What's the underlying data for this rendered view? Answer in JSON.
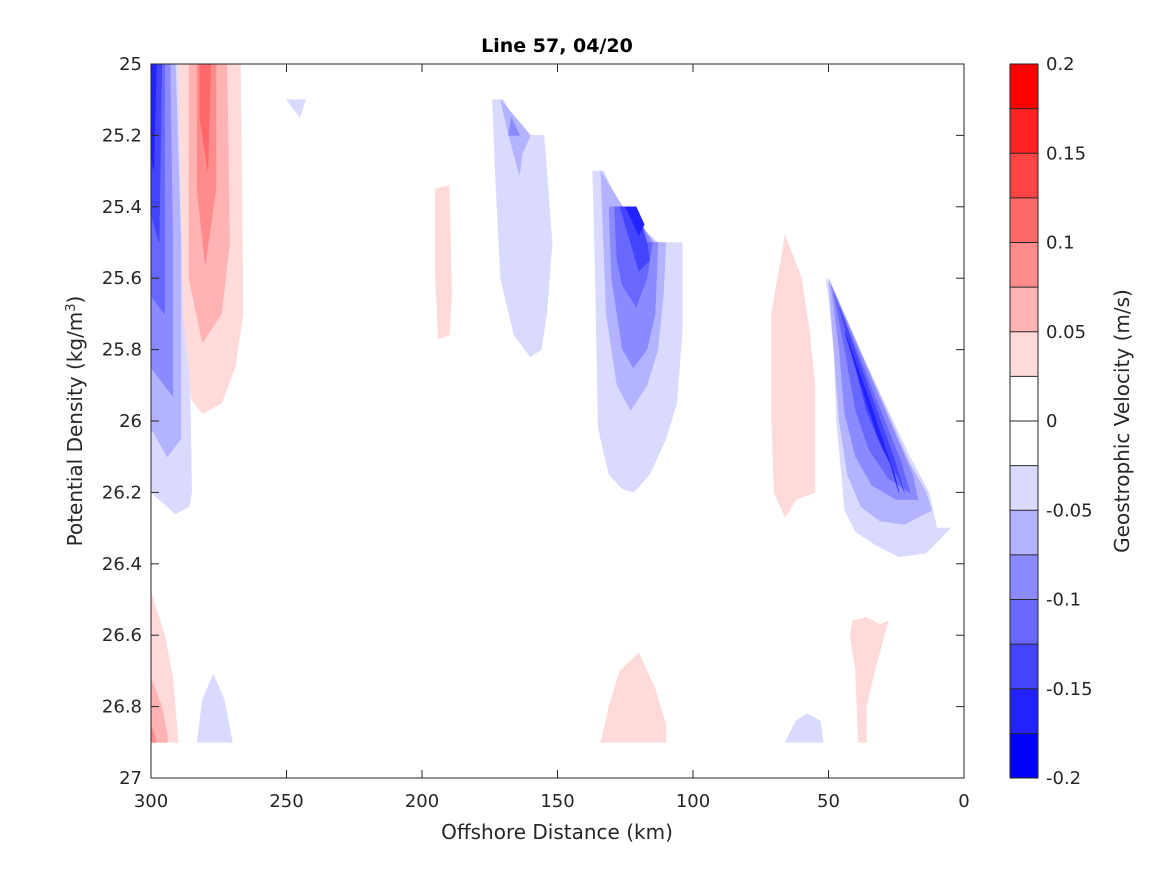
{
  "chart_data": {
    "type": "contour",
    "title": "Line 57, 04/20",
    "xlabel": "Offshore Distance (km)",
    "ylabel_main": "Potential Density (kg/m",
    "ylabel_sup": "3",
    "ylabel_close": ")",
    "colorbar_label": "Geostrophic Velocity (m/s)",
    "xlim": [
      300,
      0
    ],
    "ylim": [
      25,
      27
    ],
    "x_reversed": true,
    "y_reversed": true,
    "xticks": [
      "300",
      "250",
      "200",
      "150",
      "100",
      "50",
      "0"
    ],
    "yticks": [
      "25",
      "25.2",
      "25.4",
      "25.6",
      "25.8",
      "26",
      "26.2",
      "26.4",
      "26.6",
      "26.8",
      "27"
    ],
    "colorbar": {
      "range": [
        -0.2,
        0.2
      ],
      "levels": 16,
      "tick_labels": [
        "0.2",
        "0.15",
        "0.1",
        "0.05",
        "0",
        "-0.05",
        "-0.1",
        "-0.15",
        "-0.2"
      ],
      "colors_top_to_bottom": [
        "#ff0000",
        "#ff2222",
        "#ff4444",
        "#ff6868",
        "#ff8b8b",
        "#ffb3b3",
        "#ffdada",
        "#ffffff",
        "#ffffff",
        "#dadaff",
        "#b3b3ff",
        "#8b8bff",
        "#6868ff",
        "#4444ff",
        "#2222ff",
        "#0000ff"
      ]
    },
    "regions": [
      {
        "sign": "neg",
        "level": 1,
        "points": [
          [
            300,
            25
          ],
          [
            289,
            25
          ],
          [
            286,
            25.7
          ],
          [
            285,
            26.2
          ],
          [
            286,
            26.24
          ],
          [
            291,
            26.26
          ],
          [
            300,
            26.2
          ]
        ]
      },
      {
        "sign": "neg",
        "level": 2,
        "points": [
          [
            300,
            25
          ],
          [
            291,
            25
          ],
          [
            289,
            25.5
          ],
          [
            289,
            26.05
          ],
          [
            294,
            26.1
          ],
          [
            300,
            26.02
          ]
        ]
      },
      {
        "sign": "neg",
        "level": 3,
        "points": [
          [
            300,
            25
          ],
          [
            293,
            25
          ],
          [
            292,
            25.5
          ],
          [
            292,
            25.93
          ],
          [
            300,
            25.85
          ]
        ]
      },
      {
        "sign": "neg",
        "level": 4,
        "points": [
          [
            300,
            25
          ],
          [
            295,
            25
          ],
          [
            295,
            25.7
          ],
          [
            300,
            25.65
          ]
        ]
      },
      {
        "sign": "neg",
        "level": 5,
        "points": [
          [
            300,
            25
          ],
          [
            296,
            25
          ],
          [
            297,
            25.5
          ],
          [
            300,
            25.42
          ]
        ]
      },
      {
        "sign": "neg",
        "level": 6,
        "points": [
          [
            300,
            25
          ],
          [
            298,
            25
          ],
          [
            299,
            25.3
          ],
          [
            300,
            25.25
          ]
        ]
      },
      {
        "sign": "pos",
        "level": 1,
        "points": [
          [
            290,
            25
          ],
          [
            267,
            25
          ],
          [
            266,
            25.7
          ],
          [
            269,
            25.85
          ],
          [
            274,
            25.95
          ],
          [
            281,
            25.98
          ],
          [
            285,
            25.94
          ],
          [
            288,
            25.7
          ]
        ]
      },
      {
        "sign": "pos",
        "level": 2,
        "points": [
          [
            286,
            25
          ],
          [
            272,
            25
          ],
          [
            271,
            25.5
          ],
          [
            274,
            25.7
          ],
          [
            281,
            25.78
          ],
          [
            286,
            25.6
          ]
        ]
      },
      {
        "sign": "pos",
        "level": 3,
        "points": [
          [
            283,
            25
          ],
          [
            276,
            25
          ],
          [
            276,
            25.35
          ],
          [
            280,
            25.56
          ],
          [
            283,
            25.35
          ]
        ]
      },
      {
        "sign": "pos",
        "level": 4,
        "points": [
          [
            282,
            25
          ],
          [
            278,
            25
          ],
          [
            279,
            25.3
          ],
          [
            282,
            25.15
          ]
        ]
      },
      {
        "sign": "neg",
        "level": 1,
        "points": [
          [
            250,
            25.1
          ],
          [
            243,
            25.1
          ],
          [
            245,
            25.15
          ],
          [
            247,
            25.13
          ]
        ]
      },
      {
        "sign": "pos",
        "level": 1,
        "points": [
          [
            195,
            25.35
          ],
          [
            190,
            25.34
          ],
          [
            189,
            25.65
          ],
          [
            190,
            25.76
          ],
          [
            194,
            25.77
          ],
          [
            195,
            25.6
          ]
        ]
      },
      {
        "sign": "neg",
        "level": 1,
        "points": [
          [
            174,
            25.1
          ],
          [
            170,
            25.1
          ],
          [
            163,
            25.2
          ],
          [
            155,
            25.2
          ],
          [
            152,
            25.5
          ],
          [
            154,
            25.7
          ],
          [
            156,
            25.8
          ],
          [
            160,
            25.82
          ],
          [
            166,
            25.76
          ],
          [
            171,
            25.6
          ],
          [
            173,
            25.3
          ]
        ]
      },
      {
        "sign": "neg",
        "level": 2,
        "points": [
          [
            171,
            25.1
          ],
          [
            160,
            25.2
          ],
          [
            163,
            25.25
          ],
          [
            164,
            25.31
          ],
          [
            168,
            25.2
          ]
        ]
      },
      {
        "sign": "neg",
        "level": 3,
        "points": [
          [
            167,
            25.15
          ],
          [
            164,
            25.2
          ],
          [
            168,
            25.2
          ]
        ]
      },
      {
        "sign": "neg",
        "level": 1,
        "points": [
          [
            137,
            25.3
          ],
          [
            133,
            25.3
          ],
          [
            127,
            25.4
          ],
          [
            113,
            25.5
          ],
          [
            104,
            25.5
          ],
          [
            104,
            25.75
          ],
          [
            106,
            25.95
          ],
          [
            110,
            26.05
          ],
          [
            116,
            26.15
          ],
          [
            122,
            26.2
          ],
          [
            126,
            26.19
          ],
          [
            131,
            26.15
          ],
          [
            135,
            26.02
          ],
          [
            136,
            25.6
          ]
        ]
      },
      {
        "sign": "neg",
        "level": 2,
        "points": [
          [
            134,
            25.3
          ],
          [
            126,
            25.4
          ],
          [
            114,
            25.5
          ],
          [
            110,
            25.5
          ],
          [
            111,
            25.65
          ],
          [
            113,
            25.8
          ],
          [
            117,
            25.9
          ],
          [
            123,
            25.97
          ],
          [
            128,
            25.9
          ],
          [
            132,
            25.7
          ]
        ]
      },
      {
        "sign": "neg",
        "level": 3,
        "points": [
          [
            131,
            25.4
          ],
          [
            123,
            25.4
          ],
          [
            115,
            25.5
          ],
          [
            113,
            25.5
          ],
          [
            114,
            25.7
          ],
          [
            117,
            25.8
          ],
          [
            122,
            25.85
          ],
          [
            126,
            25.8
          ],
          [
            130,
            25.6
          ]
        ]
      },
      {
        "sign": "neg",
        "level": 4,
        "points": [
          [
            129,
            25.4
          ],
          [
            121,
            25.4
          ],
          [
            117,
            25.5
          ],
          [
            115,
            25.5
          ],
          [
            117,
            25.6
          ],
          [
            121,
            25.68
          ],
          [
            126,
            25.62
          ],
          [
            128,
            25.55
          ]
        ]
      },
      {
        "sign": "neg",
        "level": 5,
        "points": [
          [
            127,
            25.4
          ],
          [
            121,
            25.4
          ],
          [
            117,
            25.5
          ],
          [
            116,
            25.55
          ],
          [
            120,
            25.58
          ],
          [
            123,
            25.5
          ]
        ]
      },
      {
        "sign": "neg",
        "level": 6,
        "points": [
          [
            125,
            25.4
          ],
          [
            121,
            25.4
          ],
          [
            118,
            25.45
          ],
          [
            120,
            25.48
          ]
        ]
      },
      {
        "sign": "pos",
        "level": 1,
        "points": [
          [
            66,
            25.48
          ],
          [
            71,
            25.7
          ],
          [
            71,
            25.8
          ],
          [
            71,
            26.0
          ],
          [
            70,
            26.2
          ],
          [
            66,
            26.27
          ],
          [
            62,
            26.22
          ],
          [
            55,
            26.2
          ],
          [
            55,
            25.9
          ],
          [
            57,
            25.75
          ],
          [
            60,
            25.6
          ]
        ]
      },
      {
        "sign": "neg",
        "level": 1,
        "points": [
          [
            51,
            25.6
          ],
          [
            50,
            25.65
          ],
          [
            48,
            25.8
          ],
          [
            47,
            26.0
          ],
          [
            44,
            26.25
          ],
          [
            40,
            26.31
          ],
          [
            32,
            26.35
          ],
          [
            24,
            26.38
          ],
          [
            14,
            26.37
          ],
          [
            5,
            26.3
          ],
          [
            10,
            26.3
          ],
          [
            13,
            26.2
          ],
          [
            20,
            26.1
          ]
        ]
      },
      {
        "sign": "neg",
        "level": 2,
        "points": [
          [
            50,
            25.6
          ],
          [
            48,
            25.8
          ],
          [
            46,
            26.0
          ],
          [
            43,
            26.15
          ],
          [
            38,
            26.24
          ],
          [
            31,
            26.28
          ],
          [
            22,
            26.29
          ],
          [
            12,
            26.25
          ],
          [
            14,
            26.2
          ],
          [
            20,
            26.12
          ]
        ]
      },
      {
        "sign": "neg",
        "level": 3,
        "points": [
          [
            49,
            25.62
          ],
          [
            46,
            25.8
          ],
          [
            44,
            25.98
          ],
          [
            40,
            26.1
          ],
          [
            34,
            26.18
          ],
          [
            25,
            26.22
          ],
          [
            17,
            26.22
          ],
          [
            19,
            26.15
          ]
        ]
      },
      {
        "sign": "neg",
        "level": 4,
        "points": [
          [
            48,
            25.64
          ],
          [
            44,
            25.8
          ],
          [
            40,
            25.97
          ],
          [
            35,
            26.08
          ],
          [
            28,
            26.16
          ],
          [
            20,
            26.2
          ],
          [
            23,
            26.12
          ]
        ]
      },
      {
        "sign": "neg",
        "level": 5,
        "points": [
          [
            46,
            25.68
          ],
          [
            41,
            25.82
          ],
          [
            36,
            25.97
          ],
          [
            30,
            26.08
          ],
          [
            24,
            26.16
          ],
          [
            22,
            26.2
          ],
          [
            26,
            26.1
          ]
        ]
      },
      {
        "sign": "neg",
        "level": 6,
        "points": [
          [
            44,
            25.75
          ],
          [
            38,
            25.9
          ],
          [
            32,
            26.04
          ],
          [
            26,
            26.14
          ],
          [
            24,
            26.2
          ],
          [
            28,
            26.1
          ],
          [
            35,
            25.94
          ]
        ]
      },
      {
        "sign": "pos",
        "level": 1,
        "points": [
          [
            300,
            26.48
          ],
          [
            295,
            26.6
          ],
          [
            292,
            26.72
          ],
          [
            290,
            26.9
          ],
          [
            300,
            26.9
          ]
        ]
      },
      {
        "sign": "pos",
        "level": 2,
        "points": [
          [
            300,
            26.72
          ],
          [
            296,
            26.8
          ],
          [
            294,
            26.88
          ],
          [
            294,
            26.9
          ],
          [
            300,
            26.9
          ]
        ]
      },
      {
        "sign": "pos",
        "level": 3,
        "points": [
          [
            300,
            26.85
          ],
          [
            298,
            26.9
          ],
          [
            300,
            26.9
          ]
        ]
      },
      {
        "sign": "neg",
        "level": 1,
        "points": [
          [
            283,
            26.9
          ],
          [
            281,
            26.78
          ],
          [
            277,
            26.71
          ],
          [
            273,
            26.78
          ],
          [
            270,
            26.9
          ]
        ]
      },
      {
        "sign": "pos",
        "level": 1,
        "points": [
          [
            134,
            26.9
          ],
          [
            131,
            26.8
          ],
          [
            127,
            26.7
          ],
          [
            120,
            26.65
          ],
          [
            114,
            26.75
          ],
          [
            110,
            26.85
          ],
          [
            110,
            26.9
          ]
        ]
      },
      {
        "sign": "neg",
        "level": 1,
        "points": [
          [
            66,
            26.9
          ],
          [
            62,
            26.84
          ],
          [
            58,
            26.82
          ],
          [
            53,
            26.84
          ],
          [
            52,
            26.9
          ]
        ]
      },
      {
        "sign": "pos",
        "level": 1,
        "points": [
          [
            42,
            26.6
          ],
          [
            41,
            26.56
          ],
          [
            36,
            26.55
          ],
          [
            31,
            26.57
          ],
          [
            28,
            26.56
          ],
          [
            33,
            26.7
          ],
          [
            36,
            26.8
          ],
          [
            36,
            26.9
          ],
          [
            39,
            26.9
          ],
          [
            40,
            26.7
          ]
        ]
      }
    ]
  }
}
